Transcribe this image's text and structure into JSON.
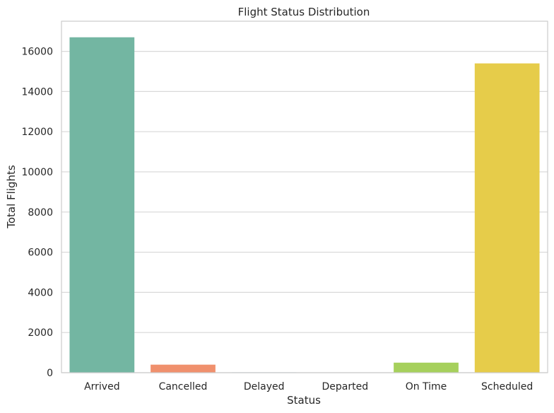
{
  "chart_data": {
    "type": "bar",
    "title": "Flight Status Distribution",
    "xlabel": "Status",
    "ylabel": "Total Flights",
    "categories": [
      "Arrived",
      "Cancelled",
      "Delayed",
      "Departed",
      "On Time",
      "Scheduled"
    ],
    "values": [
      16700,
      400,
      20,
      15,
      500,
      15400
    ],
    "colors": [
      "#73b6a2",
      "#f0906d",
      "#8da0cb",
      "#e78ac3",
      "#a6d05c",
      "#e6cc4a"
    ],
    "ylim": [
      0,
      17500
    ],
    "yticks": [
      0,
      2000,
      4000,
      6000,
      8000,
      10000,
      12000,
      14000,
      16000
    ],
    "grid": "y",
    "legend": "none"
  }
}
